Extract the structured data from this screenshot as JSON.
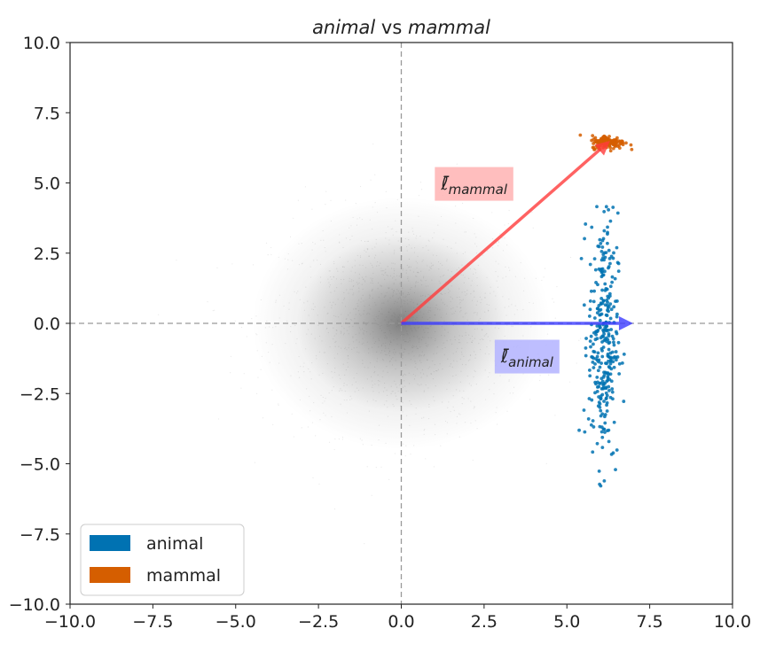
{
  "chart_data": {
    "type": "scatter",
    "title_parts": [
      {
        "text": "animal",
        "italic": true
      },
      {
        "text": " vs ",
        "italic": false
      },
      {
        "text": "mammal",
        "italic": true
      }
    ],
    "xlim": [
      -10,
      10
    ],
    "ylim": [
      -10,
      10
    ],
    "xticks": [
      -10,
      -7.5,
      -5,
      -2.5,
      0,
      2.5,
      5,
      7.5,
      10
    ],
    "yticks": [
      -10,
      -7.5,
      -5,
      -2.5,
      0,
      2.5,
      5,
      7.5,
      10
    ],
    "xtick_labels": [
      "−10.0",
      "−7.5",
      "−5.0",
      "−2.5",
      "0.0",
      "2.5",
      "5.0",
      "7.5",
      "10.0"
    ],
    "ytick_labels": [
      "−10.0",
      "−7.5",
      "−5.0",
      "−2.5",
      "0.0",
      "2.5",
      "5.0",
      "7.5",
      "10.0"
    ],
    "grid": false,
    "reference_lines": {
      "x": 0,
      "y": 0,
      "style": "dashed",
      "color": "#999999"
    },
    "background_cloud": {
      "center": [
        0,
        0
      ],
      "spread": 1.5,
      "color": "#555555"
    },
    "series": [
      {
        "name": "animal",
        "color": "#0072b2",
        "x_center": 6.1,
        "x_spread": 0.22,
        "y_range": [
          -6.7,
          4.9
        ],
        "y_center": -0.5,
        "y_spread": 2.2
      },
      {
        "name": "mammal",
        "color": "#d55e00",
        "x_center": 6.25,
        "x_spread": 0.25,
        "y_center": 6.45,
        "y_spread": 0.12
      }
    ],
    "arrows": [
      {
        "id": "mammal",
        "from": [
          0,
          0
        ],
        "to": [
          6.3,
          6.5
        ],
        "color": "#ff3b3b",
        "label_base": "ℓ̄",
        "label_sub": "mammal",
        "label_at": [
          2.2,
          4.95
        ],
        "label_bg": "#ffb3b3"
      },
      {
        "id": "animal",
        "from": [
          0,
          0
        ],
        "to": [
          7.0,
          0
        ],
        "color": "#3b3bff",
        "label_base": "ℓ̄",
        "label_sub": "animal",
        "label_at": [
          3.8,
          -1.2
        ],
        "label_bg": "#b3b3ff"
      }
    ],
    "legend": {
      "placement": "lower-left",
      "entries": [
        {
          "label": "animal",
          "color": "#0072b2"
        },
        {
          "label": "mammal",
          "color": "#d55e00"
        }
      ]
    }
  }
}
